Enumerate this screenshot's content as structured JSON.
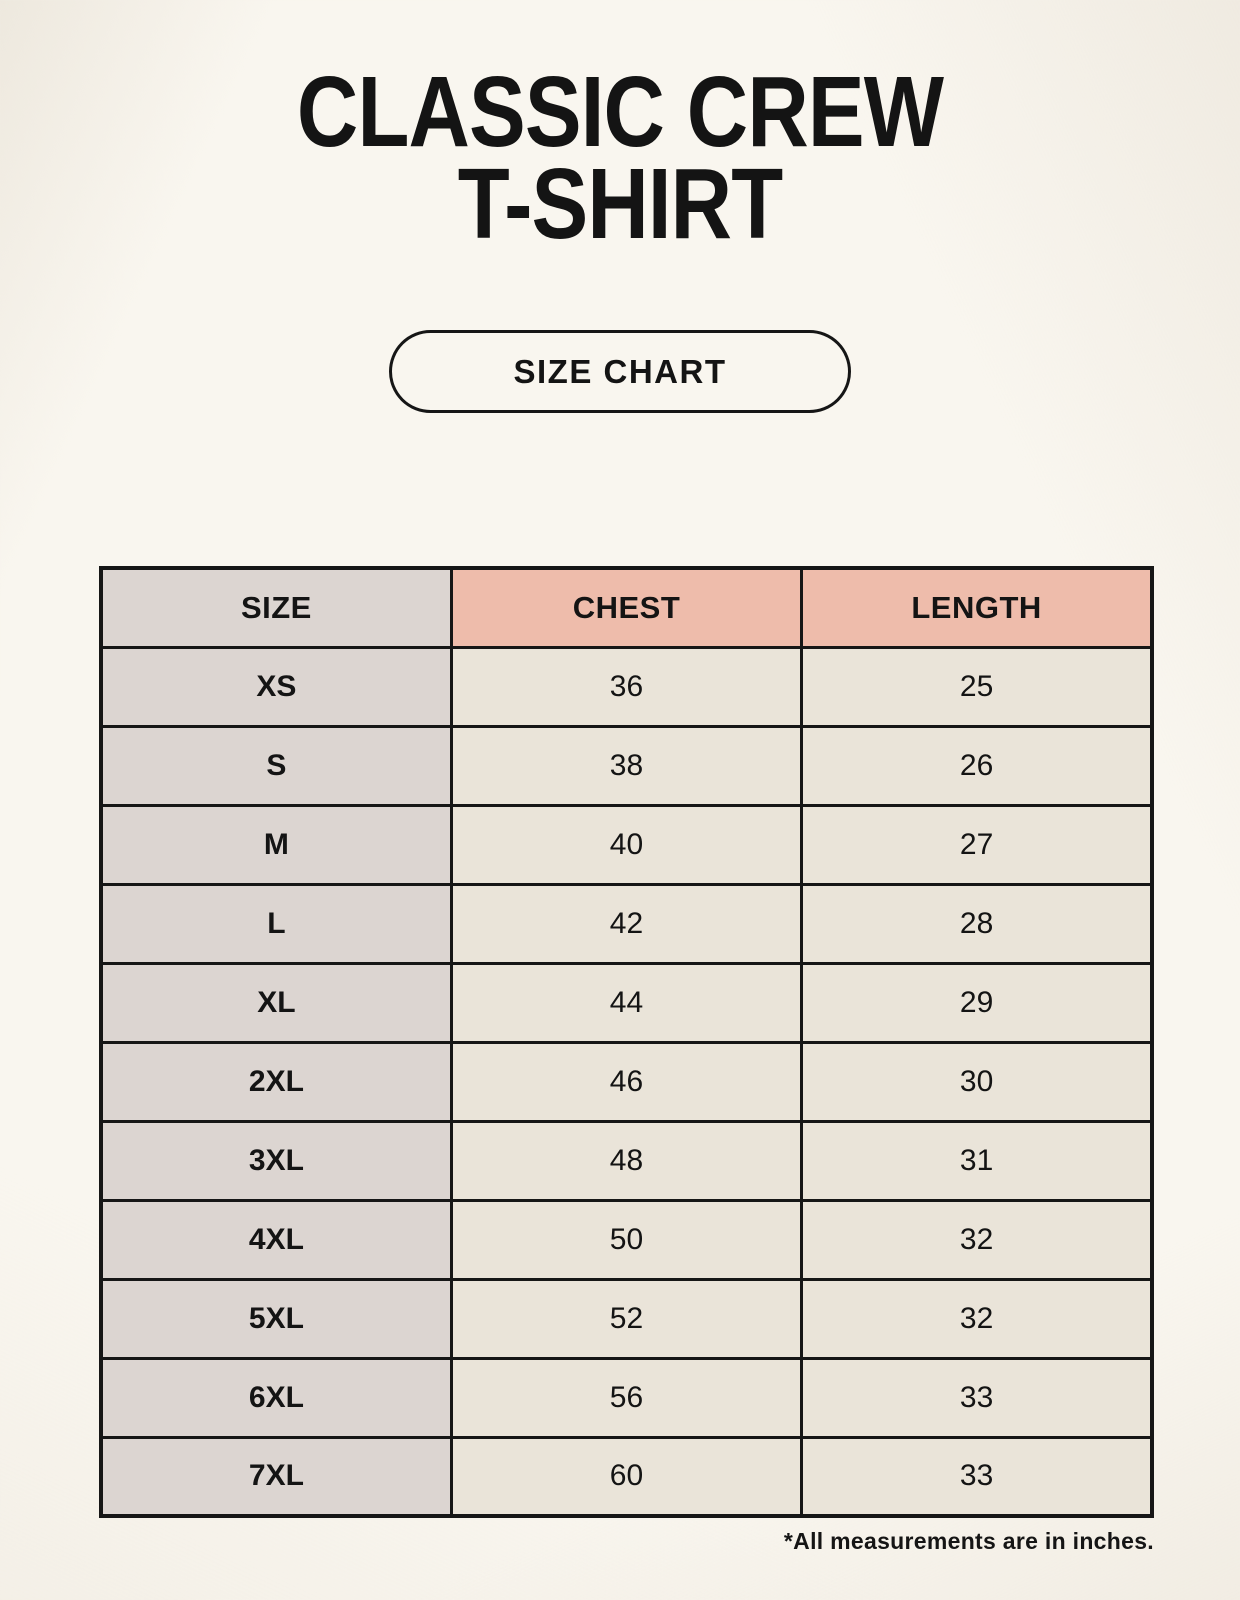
{
  "page": {
    "title_line1": "CLASSIC CREW",
    "title_line2": "T-SHIRT",
    "size_chart_button_label": "SIZE CHART",
    "footnote": "*All measurements are in inches."
  },
  "table": {
    "columns": [
      "SIZE",
      "CHEST",
      "LENGTH"
    ],
    "rows": [
      {
        "size": "XS",
        "chest": "36",
        "length": "25"
      },
      {
        "size": "S",
        "chest": "38",
        "length": "26"
      },
      {
        "size": "M",
        "chest": "40",
        "length": "27"
      },
      {
        "size": "L",
        "chest": "42",
        "length": "28"
      },
      {
        "size": "XL",
        "chest": "44",
        "length": "29"
      },
      {
        "size": "2XL",
        "chest": "46",
        "length": "30"
      },
      {
        "size": "3XL",
        "chest": "48",
        "length": "31"
      },
      {
        "size": "4XL",
        "chest": "50",
        "length": "32"
      },
      {
        "size": "5XL",
        "chest": "52",
        "length": "32"
      },
      {
        "size": "6XL",
        "chest": "56",
        "length": "33"
      },
      {
        "size": "7XL",
        "chest": "60",
        "length": "33"
      }
    ],
    "units": "inches"
  },
  "colors": {
    "background": "#f9f6ef",
    "header_accent": "#eebcab",
    "size_column": "#dcd5d1",
    "data_cell": "#eae4d9",
    "border": "#161616",
    "text": "#141414"
  }
}
